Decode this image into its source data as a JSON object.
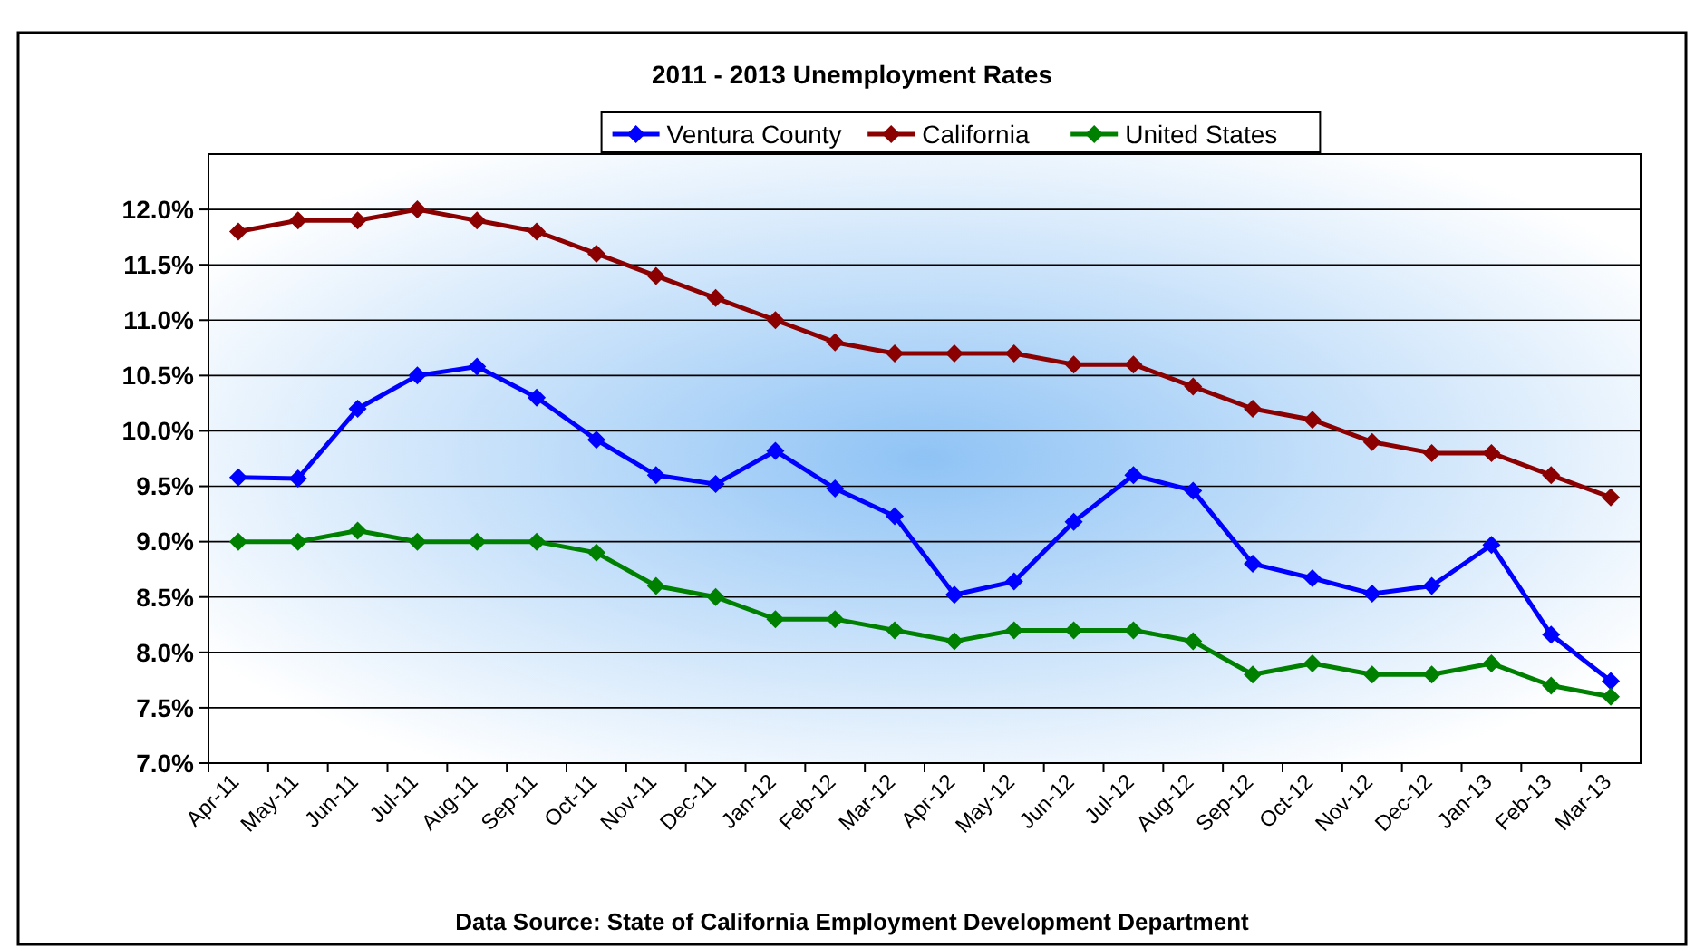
{
  "chart_data": {
    "type": "line",
    "title": "2011 - 2013 Unemployment Rates",
    "categories": [
      "Apr-11",
      "May-11",
      "Jun-11",
      "Jul-11",
      "Aug-11",
      "Sep-11",
      "Oct-11",
      "Nov-11",
      "Dec-11",
      "Jan-12",
      "Feb-12",
      "Mar-12",
      "Apr-12",
      "May-12",
      "Jun-12",
      "Jul-12",
      "Aug-12",
      "Sep-12",
      "Oct-12",
      "Nov-12",
      "Dec-12",
      "Jan-13",
      "Feb-13",
      "Mar-13"
    ],
    "series": [
      {
        "name": "Ventura County",
        "color": "#0000ff",
        "values": [
          9.58,
          9.57,
          10.2,
          10.5,
          10.58,
          10.3,
          9.92,
          9.6,
          9.52,
          9.82,
          9.48,
          9.23,
          8.52,
          8.64,
          9.18,
          9.6,
          9.46,
          8.8,
          8.67,
          8.53,
          8.6,
          8.97,
          8.16,
          7.74
        ]
      },
      {
        "name": "California",
        "color": "#8b0000",
        "values": [
          11.8,
          11.9,
          11.9,
          12.0,
          11.9,
          11.8,
          11.6,
          11.4,
          11.2,
          11.0,
          10.8,
          10.7,
          10.7,
          10.7,
          10.6,
          10.6,
          10.4,
          10.2,
          10.1,
          9.9,
          9.8,
          9.8,
          9.6,
          9.4
        ]
      },
      {
        "name": "United States",
        "color": "#008000",
        "values": [
          9.0,
          9.0,
          9.1,
          9.0,
          9.0,
          9.0,
          8.9,
          8.6,
          8.5,
          8.3,
          8.3,
          8.2,
          8.1,
          8.2,
          8.2,
          8.2,
          8.1,
          7.8,
          7.9,
          7.8,
          7.8,
          7.9,
          7.7,
          7.6
        ]
      }
    ],
    "ylim": [
      7,
      12.5
    ],
    "yticks": [
      {
        "value": 7,
        "label": "7.0%"
      },
      {
        "value": 7.5,
        "label": "7.5%"
      },
      {
        "value": 8,
        "label": "8.0%"
      },
      {
        "value": 8.5,
        "label": "8.5%"
      },
      {
        "value": 9,
        "label": "9.0%"
      },
      {
        "value": 9.5,
        "label": "9.5%"
      },
      {
        "value": 10,
        "label": "10.0%"
      },
      {
        "value": 10.5,
        "label": "10.5%"
      },
      {
        "value": 11,
        "label": "11.0%"
      },
      {
        "value": 11.5,
        "label": "11.5%"
      },
      {
        "value": 12,
        "label": "12.0%"
      }
    ],
    "grid": "y",
    "legend": "top",
    "marker": "diamond",
    "line_style": "solid",
    "annotations": [
      "Data Source: State of California Employment Development Department"
    ]
  }
}
